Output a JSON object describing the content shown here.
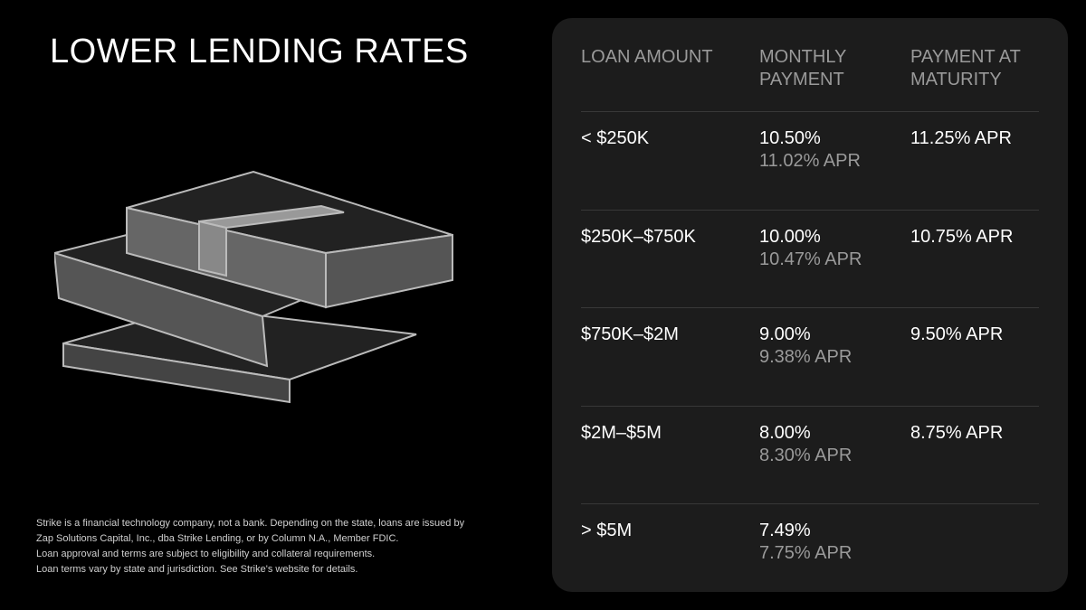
{
  "title": "LOWER LENDING RATES",
  "disclaimer": [
    "Strike is a financial technology company, not a bank. Depending on the state, loans are issued by",
    "Zap Solutions Capital, Inc., dba Strike Lending, or by Column N.A., Member FDIC.",
    "Loan approval and terms are subject to eligibility and collateral requirements.",
    "Loan terms vary by state and jurisdiction. See Strike's website for details."
  ],
  "table": {
    "headers": [
      "LOAN AMOUNT",
      "MONTHLY PAYMENT",
      "PAYMENT AT MATURITY"
    ],
    "rows": [
      {
        "amount": "< $250K",
        "monthly_rate": "10.50%",
        "monthly_apr": "11.02% APR",
        "maturity": "11.25% APR"
      },
      {
        "amount": "$250K–$750K",
        "monthly_rate": "10.00%",
        "monthly_apr": "10.47% APR",
        "maturity": "10.75% APR"
      },
      {
        "amount": "$750K–$2M",
        "monthly_rate": "9.00%",
        "monthly_apr": "9.38% APR",
        "maturity": "9.50% APR"
      },
      {
        "amount": "$2M–$5M",
        "monthly_rate": "8.00%",
        "monthly_apr": "8.30% APR",
        "maturity": "8.75% APR"
      },
      {
        "amount": "> $5M",
        "monthly_rate": "7.49%",
        "monthly_apr": "7.75% APR"
      }
    ]
  }
}
